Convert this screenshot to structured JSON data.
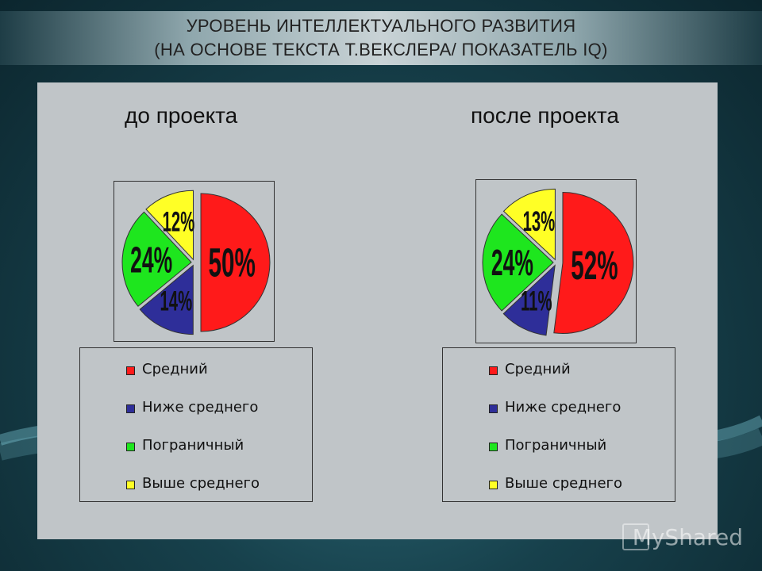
{
  "header": {
    "line1": "УРОВЕНЬ ИНТЕЛЛЕКТУАЛЬНОГО РАЗВИТИЯ",
    "line2": "(НА ОСНОВЕ ТЕКСТА Т.ВЕКСЛЕРА/ ПОКАЗАТЕЛЬ IQ)"
  },
  "watermark": "MyShared",
  "colors": {
    "Средний": "#ff1a1a",
    "Ниже среднего": "#2e2e99",
    "Пограничный": "#1ee61e",
    "Выше среднего": "#ffff26"
  },
  "chart_data": [
    {
      "type": "pie",
      "title": "до проекта",
      "slices": [
        {
          "label": "Средний",
          "value": 50,
          "text": "50%"
        },
        {
          "label": "Ниже среднего",
          "value": 14,
          "text": "14%"
        },
        {
          "label": "Пограничный",
          "value": 24,
          "text": "24%"
        },
        {
          "label": "Выше среднего",
          "value": 12,
          "text": "12%"
        }
      ],
      "legend": [
        "Средний",
        "Ниже среднего",
        "Пограничный",
        "Выше среднего"
      ],
      "legend_position": "below",
      "exploded": true
    },
    {
      "type": "pie",
      "title": "после проекта",
      "slices": [
        {
          "label": "Средний",
          "value": 52,
          "text": "52%"
        },
        {
          "label": "Ниже среднего",
          "value": 11,
          "text": "11%"
        },
        {
          "label": "Пограничный",
          "value": 24,
          "text": "24%"
        },
        {
          "label": "Выше среднего",
          "value": 13,
          "text": "13%"
        }
      ],
      "legend": [
        "Средний",
        "Ниже среднего",
        "Пограничный",
        "Выше среднего"
      ],
      "legend_position": "below",
      "exploded": true
    }
  ]
}
